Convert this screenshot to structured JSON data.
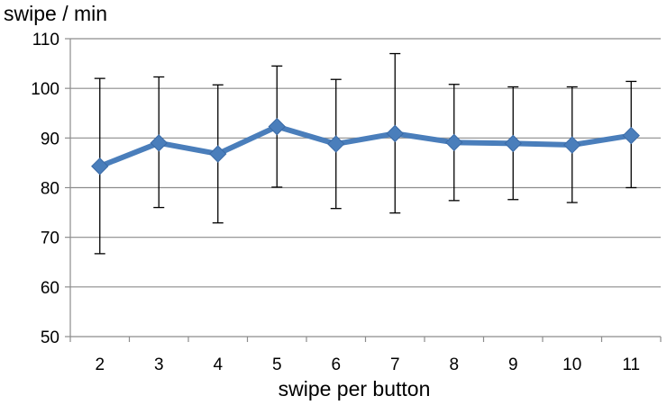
{
  "chart_data": {
    "type": "line",
    "ylabel": "swipe / min",
    "xlabel": "swipe per button",
    "categories": [
      "2",
      "3",
      "4",
      "5",
      "6",
      "7",
      "8",
      "9",
      "10",
      "11"
    ],
    "ylim": [
      50,
      110
    ],
    "yticks": [
      50,
      60,
      70,
      80,
      90,
      100,
      110
    ],
    "grid": "horizontal",
    "series": [
      {
        "values": [
          84.3,
          89.0,
          86.8,
          92.3,
          88.8,
          90.9,
          89.1,
          88.9,
          88.6,
          90.5
        ],
        "error_low": [
          66.7,
          76.0,
          72.9,
          80.1,
          75.8,
          74.9,
          77.4,
          77.6,
          77.0,
          80.0
        ],
        "error_high": [
          102.0,
          102.3,
          100.7,
          104.5,
          101.8,
          107.0,
          100.8,
          100.3,
          100.3,
          101.4
        ],
        "color": "#4a7ebb"
      }
    ],
    "error_bar_color": "#000000",
    "grid_color": "#8c8c8c"
  }
}
